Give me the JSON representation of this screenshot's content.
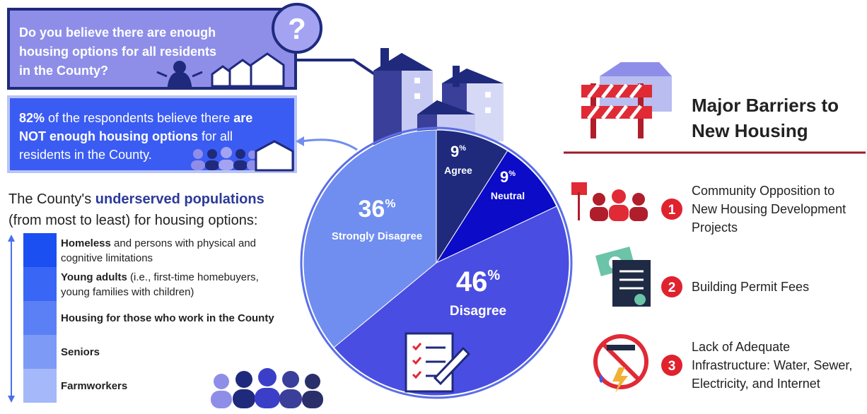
{
  "question": {
    "lines": [
      "Do you believe there are enough",
      "housing options for all residents",
      "in the County?"
    ],
    "mark": "?"
  },
  "answer": {
    "lines": [
      [
        "82%",
        " of the respondents believe there ",
        "are"
      ],
      [
        "NOT enough housing options",
        " for all"
      ],
      [
        "residents in the County."
      ]
    ]
  },
  "underserved": {
    "title": [
      "The County's ",
      "underserved populations"
    ],
    "subtitle": "(from most to least) for housing options:",
    "items": [
      {
        "bold": "Homeless",
        "rest": [
          " and persons with physical and",
          "cognitive limitations"
        ]
      },
      {
        "bold": "Young adults",
        "rest": [
          " (i.e., first-time homebuyers,",
          "young families with children)"
        ]
      },
      {
        "bold": "Housing for those who work in the County",
        "rest": []
      },
      {
        "bold": "Seniors",
        "rest": []
      },
      {
        "bold": "Farmworkers",
        "rest": []
      }
    ]
  },
  "chart_data": {
    "type": "pie",
    "categories": [
      "Agree",
      "Neutral",
      "Disagree",
      "Strongly Disagree"
    ],
    "values": [
      9,
      9,
      46,
      36
    ],
    "unit": "%",
    "colors": [
      "#1f2a7c",
      "#0b0bc8",
      "#4a4de2",
      "#6f8ef0"
    ]
  },
  "barriers": {
    "title": [
      "Major Barriers to",
      "New Housing"
    ],
    "items": [
      {
        "number": "1",
        "lines": [
          "Community Opposition to",
          "New Housing Development",
          "Projects"
        ]
      },
      {
        "number": "2",
        "lines": [
          "Building Permit Fees"
        ]
      },
      {
        "number": "3",
        "lines": [
          "Lack of Adequate",
          "Infrastructure: Water, Sewer,",
          "Electricity, and Internet"
        ]
      }
    ]
  }
}
